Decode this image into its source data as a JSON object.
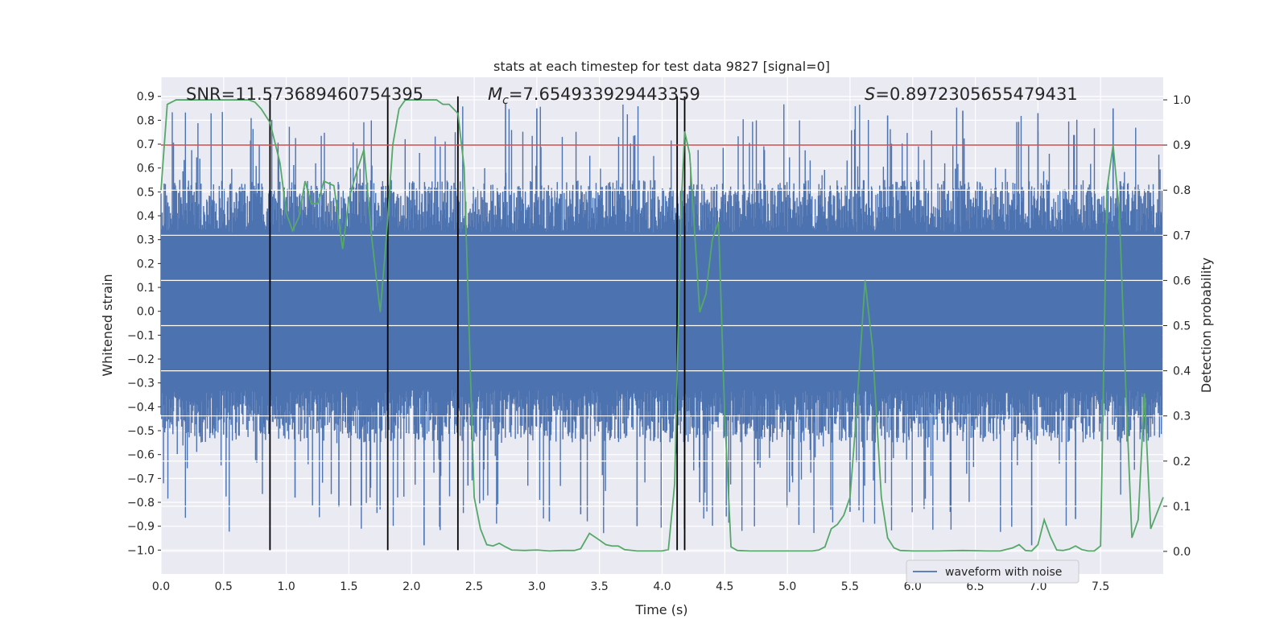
{
  "chart_data": {
    "type": "line",
    "title": "stats at each timestep for test data 9827 [signal=0]",
    "xlabel": "Time (s)",
    "ylabel": "Whitened strain",
    "ylabel_right": "Detection probability",
    "xlim": [
      0.0,
      8.0
    ],
    "ylim": [
      -1.1,
      0.98
    ],
    "ylim_right": [
      -0.05,
      1.05
    ],
    "x_ticks": [
      "0.0",
      "0.5",
      "1.0",
      "1.5",
      "2.0",
      "2.5",
      "3.0",
      "3.5",
      "4.0",
      "4.5",
      "5.0",
      "5.5",
      "6.0",
      "6.5",
      "7.0",
      "7.5"
    ],
    "y_ticks": [
      "0.9",
      "0.8",
      "0.7",
      "0.6",
      "0.5",
      "0.4",
      "0.3",
      "0.2",
      "0.1",
      "0.0",
      "−0.1",
      "−0.2",
      "−0.3",
      "−0.4",
      "−0.5",
      "−0.6",
      "−0.7",
      "−0.8",
      "−0.9",
      "−1.0"
    ],
    "y_ticks_right": [
      "1.0",
      "0.9",
      "0.8",
      "0.7",
      "0.6",
      "0.5",
      "0.4",
      "0.3",
      "0.2",
      "0.1",
      "0.0"
    ],
    "grid": true,
    "annotations": {
      "snr": "SNR=11.573689460754395",
      "mc_symbol": "M",
      "mc_sub": "c",
      "mc_value": "=7.654933929443359",
      "s_symbol": "S",
      "s_value": "=0.8972305655479431"
    },
    "threshold": {
      "value": 0.9,
      "axis": "right",
      "color": "#c44e52"
    },
    "vertical_markers": [
      0.87,
      1.81,
      2.37,
      4.12,
      4.18
    ],
    "waveform": {
      "name": "waveform with noise",
      "color": "#4c72b0",
      "typical_amplitude": 0.3,
      "max_amplitude": 0.87,
      "min_amplitude": -0.98
    },
    "detection_probability": {
      "color": "#55a868",
      "x": [
        0.0,
        0.05,
        0.12,
        0.3,
        0.5,
        0.7,
        0.75,
        0.8,
        0.87,
        0.95,
        1.0,
        1.05,
        1.1,
        1.15,
        1.2,
        1.25,
        1.3,
        1.38,
        1.45,
        1.5,
        1.55,
        1.62,
        1.68,
        1.75,
        1.8,
        1.85,
        1.9,
        1.95,
        2.0,
        2.1,
        2.2,
        2.25,
        2.3,
        2.37,
        2.42,
        2.5,
        2.55,
        2.6,
        2.65,
        2.7,
        2.75,
        2.8,
        2.9,
        3.0,
        3.1,
        3.2,
        3.3,
        3.35,
        3.42,
        3.5,
        3.55,
        3.6,
        3.65,
        3.7,
        3.8,
        3.9,
        4.0,
        4.05,
        4.1,
        4.15,
        4.18,
        4.22,
        4.3,
        4.35,
        4.4,
        4.45,
        4.5,
        4.55,
        4.6,
        4.7,
        4.8,
        5.0,
        5.2,
        5.25,
        5.3,
        5.35,
        5.4,
        5.45,
        5.5,
        5.55,
        5.62,
        5.68,
        5.75,
        5.8,
        5.85,
        5.9,
        6.0,
        6.2,
        6.4,
        6.6,
        6.7,
        6.8,
        6.85,
        6.9,
        6.95,
        7.0,
        7.05,
        7.1,
        7.15,
        7.2,
        7.25,
        7.3,
        7.35,
        7.4,
        7.45,
        7.5,
        7.55,
        7.6,
        7.65,
        7.7,
        7.75,
        7.8,
        7.85,
        7.9,
        8.0
      ],
      "y": [
        0.8,
        0.99,
        1.0,
        1.0,
        1.0,
        1.0,
        0.995,
        0.98,
        0.95,
        0.86,
        0.75,
        0.71,
        0.74,
        0.82,
        0.77,
        0.77,
        0.82,
        0.81,
        0.67,
        0.78,
        0.83,
        0.89,
        0.7,
        0.53,
        0.7,
        0.9,
        0.98,
        1.0,
        1.0,
        1.0,
        1.0,
        0.99,
        0.99,
        0.97,
        0.85,
        0.12,
        0.05,
        0.015,
        0.012,
        0.018,
        0.01,
        0.003,
        0.002,
        0.003,
        0.001,
        0.002,
        0.002,
        0.006,
        0.04,
        0.025,
        0.015,
        0.012,
        0.012,
        0.004,
        0.001,
        0.001,
        0.001,
        0.004,
        0.15,
        0.75,
        0.93,
        0.88,
        0.53,
        0.57,
        0.69,
        0.73,
        0.3,
        0.01,
        0.002,
        0.001,
        0.001,
        0.001,
        0.001,
        0.003,
        0.01,
        0.05,
        0.06,
        0.08,
        0.12,
        0.3,
        0.6,
        0.45,
        0.12,
        0.03,
        0.008,
        0.002,
        0.001,
        0.001,
        0.002,
        0.001,
        0.001,
        0.008,
        0.015,
        0.002,
        0.001,
        0.015,
        0.07,
        0.032,
        0.003,
        0.002,
        0.005,
        0.012,
        0.004,
        0.001,
        0.001,
        0.012,
        0.8,
        0.9,
        0.75,
        0.37,
        0.03,
        0.07,
        0.35,
        0.05,
        0.12
      ]
    }
  }
}
